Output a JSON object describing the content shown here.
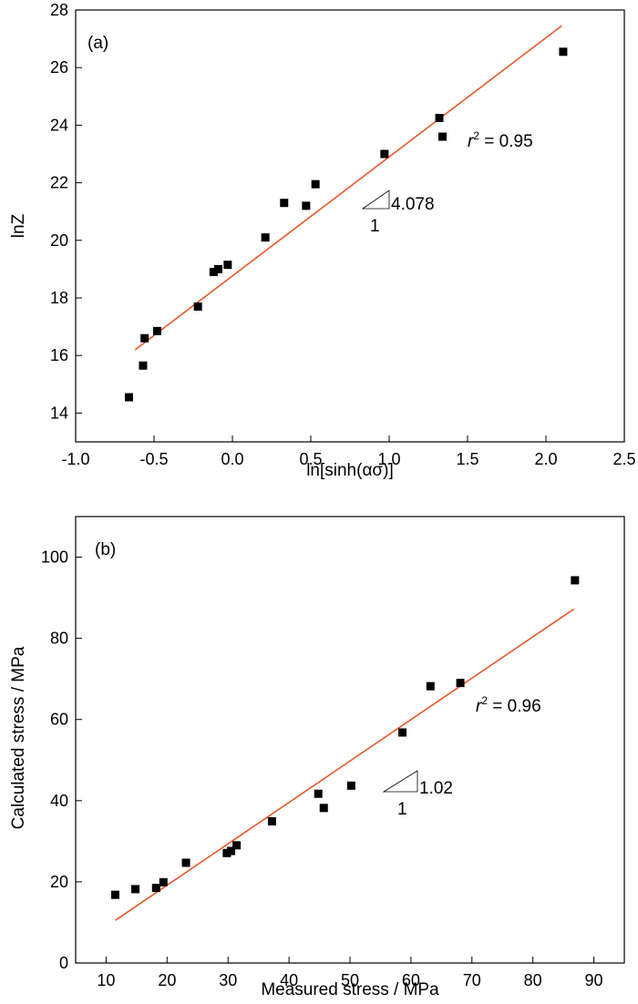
{
  "chart_data": [
    {
      "type": "scatter",
      "panel_label": "(a)",
      "xlabel": "ln[sinh(ασ)]",
      "ylabel": "lnZ",
      "xlim": [
        -1.0,
        2.5
      ],
      "ylim": [
        13,
        28
      ],
      "x_ticks": [
        -1.0,
        -0.5,
        0.0,
        0.5,
        1.0,
        1.5,
        2.0,
        2.5
      ],
      "x_tick_labels": [
        "-1.0",
        "-0.5",
        "0.0",
        "0.5",
        "1.0",
        "1.5",
        "2.0",
        "2.5"
      ],
      "y_ticks": [
        14,
        16,
        18,
        20,
        22,
        24,
        26,
        28
      ],
      "y_tick_labels": [
        "14",
        "16",
        "18",
        "20",
        "22",
        "24",
        "26",
        "28"
      ],
      "grid": false,
      "marker_color": "#000000",
      "fit_color": "#e8572a",
      "series": [
        {
          "x": [
            -0.66,
            -0.57,
            -0.56,
            -0.48,
            -0.22,
            -0.12,
            -0.09,
            -0.03,
            0.21,
            0.33,
            0.47,
            0.53,
            0.97,
            1.32,
            1.34,
            2.11
          ],
          "y": [
            14.55,
            15.65,
            16.6,
            16.85,
            17.7,
            18.9,
            19.0,
            19.15,
            20.1,
            21.3,
            21.2,
            21.95,
            23.0,
            24.25,
            23.6,
            26.55
          ]
        }
      ],
      "fit_line": {
        "x": [
          -0.62,
          2.1
        ],
        "y": [
          16.2,
          27.45
        ]
      },
      "annotations": {
        "r2_text": "r² = 0.95",
        "slope_text": "4.078",
        "run_text": "1"
      }
    },
    {
      "type": "scatter",
      "panel_label": "(b)",
      "xlabel": "Measured stress / MPa",
      "ylabel": "Calculated stress / MPa",
      "xlim": [
        5,
        95
      ],
      "ylim": [
        0,
        110
      ],
      "x_ticks": [
        10,
        20,
        30,
        40,
        50,
        60,
        70,
        80,
        90
      ],
      "x_tick_labels": [
        "10",
        "20",
        "30",
        "40",
        "50",
        "60",
        "70",
        "80",
        "90"
      ],
      "y_ticks": [
        0,
        20,
        40,
        60,
        80,
        100
      ],
      "y_tick_labels": [
        "0",
        "20",
        "40",
        "60",
        "80",
        "100"
      ],
      "grid": false,
      "marker_color": "#000000",
      "fit_color": "#e8572a",
      "series": [
        {
          "x": [
            11.5,
            14.8,
            18.2,
            19.4,
            23.1,
            29.8,
            30.5,
            31.4,
            37.2,
            44.8,
            45.7,
            50.2,
            58.6,
            63.2,
            68.1,
            86.9
          ],
          "y": [
            16.8,
            18.2,
            18.5,
            19.9,
            24.7,
            27.1,
            27.6,
            29.0,
            34.9,
            41.7,
            38.2,
            43.7,
            56.8,
            68.2,
            69.0,
            94.3
          ]
        }
      ],
      "fit_line": {
        "x": [
          11.5,
          86.7
        ],
        "y": [
          10.5,
          87.2
        ]
      },
      "annotations": {
        "r2_text": "r² = 0.96",
        "slope_text": "1.02",
        "run_text": "1"
      }
    }
  ]
}
